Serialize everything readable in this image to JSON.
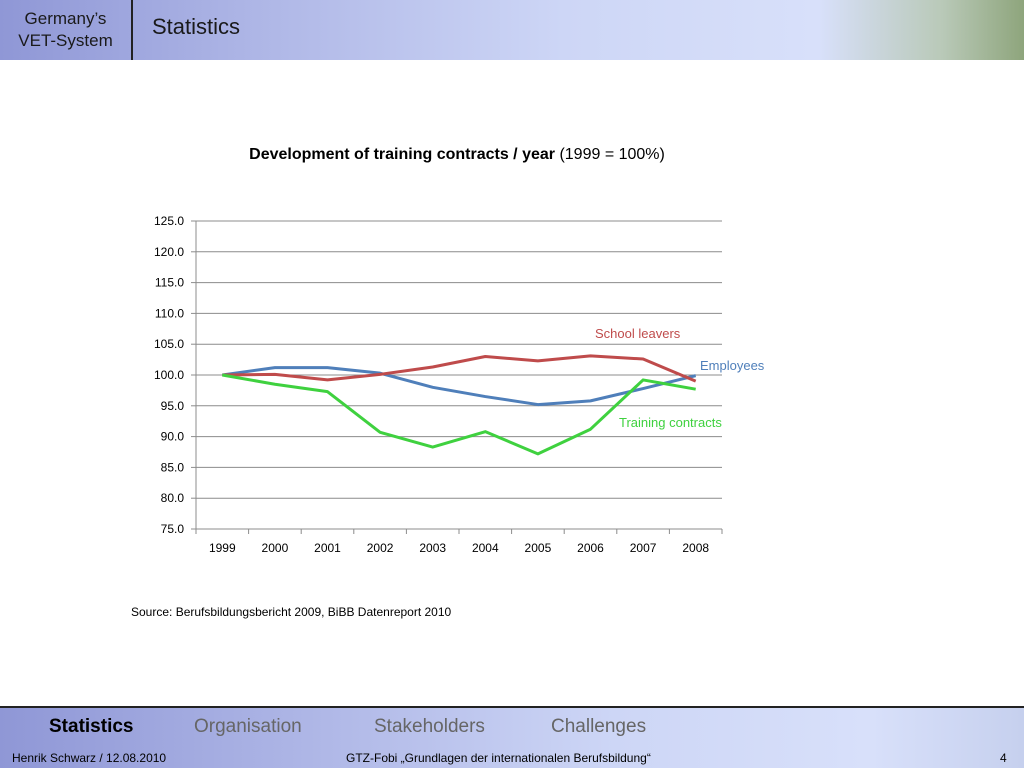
{
  "header": {
    "section_line1": "Germany’s",
    "section_line2": "VET-System",
    "title": "Statistics"
  },
  "chart_data": {
    "type": "line",
    "title_bold": "Development of training contracts / year",
    "title_rest": " (1999 = 100%)",
    "categories": [
      "1999",
      "2000",
      "2001",
      "2002",
      "2003",
      "2004",
      "2005",
      "2006",
      "2007",
      "2008"
    ],
    "y_ticks": [
      "75.0",
      "80.0",
      "85.0",
      "90.0",
      "95.0",
      "100.0",
      "105.0",
      "110.0",
      "115.0",
      "120.0",
      "125.0"
    ],
    "ylim": [
      75,
      125
    ],
    "grid": true,
    "series": [
      {
        "name": "Employees",
        "color": "#4f7fba",
        "values": [
          100.0,
          101.2,
          101.2,
          100.3,
          98.0,
          96.5,
          95.2,
          95.8,
          97.8,
          99.9
        ]
      },
      {
        "name": "School leavers",
        "color": "#bf4b4b",
        "values": [
          100.0,
          100.1,
          99.2,
          100.1,
          101.3,
          103.0,
          102.3,
          103.1,
          102.6,
          99.0
        ]
      },
      {
        "name": "Training contracts",
        "color": "#3fd13f",
        "values": [
          100.0,
          98.5,
          97.3,
          90.7,
          88.3,
          90.8,
          87.2,
          91.2,
          99.2,
          97.7
        ]
      }
    ]
  },
  "source": "Source: Berufsbildungsbericht 2009, BiBB Datenreport 2010",
  "footer": {
    "nav": [
      "Statistics",
      "Organisation",
      "Stakeholders",
      "Challenges"
    ],
    "author": "Henrik Schwarz / 12.08.2010",
    "course": "GTZ-Fobi „Grundlagen der internationalen Berufsbildung“",
    "page": "4"
  }
}
